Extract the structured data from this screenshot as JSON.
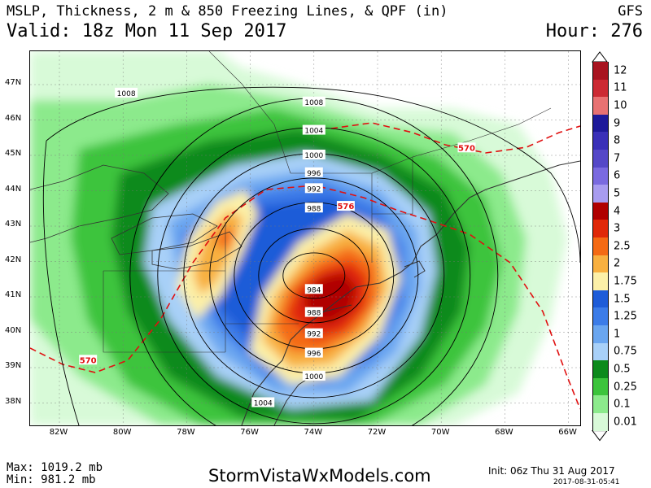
{
  "header": {
    "title": "MSLP, Thickness, 2 m & 850 Freezing Lines, & QPF (in)",
    "valid": "Valid: 18z Mon 11 Sep 2017",
    "model": "GFS",
    "hour": "Hour: 276"
  },
  "footer": {
    "max": "Max: 1019.2 mb",
    "min": "Min: 981.2 mb",
    "site": "StormVistaWxModels.com",
    "init": "Init: 06z Thu 31 Aug 2017",
    "stamp": "2017-08-31-05:41"
  },
  "map": {
    "lat_labels": [
      "47N",
      "46N",
      "45N",
      "44N",
      "43N",
      "42N",
      "41N",
      "40N",
      "39N",
      "38N"
    ],
    "lon_labels": [
      "82W",
      "80W",
      "78W",
      "76W",
      "74W",
      "72W",
      "70W",
      "68W",
      "66W"
    ],
    "isobars": [
      {
        "value": "1008",
        "x": -74.0,
        "y": 46.5
      },
      {
        "value": "1004",
        "x": -74.0,
        "y": 45.7
      },
      {
        "value": "1000",
        "x": -74.0,
        "y": 45.0
      },
      {
        "value": "996",
        "x": -74.0,
        "y": 44.5
      },
      {
        "value": "992",
        "x": -74.0,
        "y": 44.05
      },
      {
        "value": "988",
        "x": -74.0,
        "y": 43.5
      },
      {
        "value": "984",
        "x": -74.0,
        "y": 41.2
      },
      {
        "value": "988",
        "x": -74.0,
        "y": 40.55
      },
      {
        "value": "992",
        "x": -74.0,
        "y": 39.95
      },
      {
        "value": "996",
        "x": -74.0,
        "y": 39.4
      },
      {
        "value": "1000",
        "x": -74.0,
        "y": 38.75
      },
      {
        "value": "1004",
        "x": -75.6,
        "y": 38.0
      },
      {
        "value": "1008",
        "x": -79.9,
        "y": 46.75
      }
    ],
    "thickness": [
      {
        "value": "570",
        "x": -81.1,
        "y": 39.2
      },
      {
        "value": "576",
        "x": -73.0,
        "y": 43.55
      },
      {
        "value": "570",
        "x": -69.2,
        "y": 45.2
      }
    ]
  },
  "legend": {
    "items": [
      {
        "label": "12",
        "color": "#a81420"
      },
      {
        "label": "11",
        "color": "#cc2a33"
      },
      {
        "label": "10",
        "color": "#e87272"
      },
      {
        "label": "9",
        "color": "#1e1a9a"
      },
      {
        "label": "8",
        "color": "#3a30b8"
      },
      {
        "label": "7",
        "color": "#5548c8"
      },
      {
        "label": "6",
        "color": "#7a6ae0"
      },
      {
        "label": "5",
        "color": "#a89cf0"
      },
      {
        "label": "4",
        "color": "#b00000"
      },
      {
        "label": "3",
        "color": "#e02808"
      },
      {
        "label": "2.5",
        "color": "#f46a14"
      },
      {
        "label": "2",
        "color": "#f8b040"
      },
      {
        "label": "1.75",
        "color": "#fcf0a8"
      },
      {
        "label": "1.5",
        "color": "#1e5cd8"
      },
      {
        "label": "1.25",
        "color": "#3c7ce8"
      },
      {
        "label": "1",
        "color": "#6aa6f0"
      },
      {
        "label": "0.75",
        "color": "#a8d0f8"
      },
      {
        "label": "0.5",
        "color": "#0c8a1c"
      },
      {
        "label": "0.25",
        "color": "#3cc43c"
      },
      {
        "label": "0.1",
        "color": "#8cea8c"
      },
      {
        "label": "0.01",
        "color": "#d8fad8"
      }
    ]
  }
}
